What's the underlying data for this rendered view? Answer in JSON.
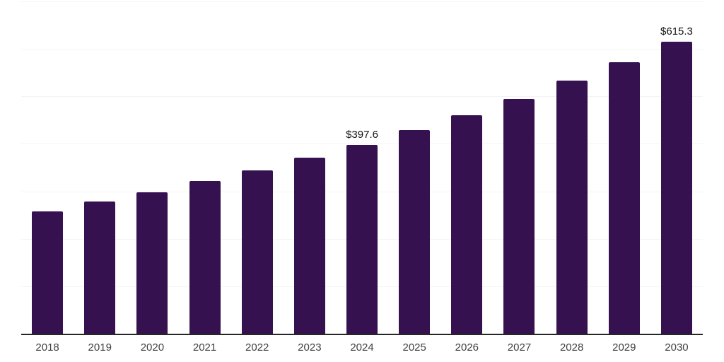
{
  "chart_data": {
    "type": "bar",
    "title": "",
    "xlabel": "",
    "ylabel": "",
    "categories": [
      "2018",
      "2019",
      "2020",
      "2021",
      "2022",
      "2023",
      "2024",
      "2025",
      "2026",
      "2027",
      "2028",
      "2029",
      "2030"
    ],
    "values": [
      258.0,
      278.7,
      298.0,
      321.8,
      344.1,
      370.9,
      397.6,
      428.8,
      460.0,
      494.2,
      532.9,
      571.5,
      615.3
    ],
    "data_labels": {
      "2024": "$397.6",
      "2030": "$615.3"
    },
    "ylim": [
      0,
      700
    ],
    "gridline_interval": 100,
    "grid": "horizontal-only",
    "legend": "none",
    "colors": {
      "bar": "#361150",
      "axis_line": "#262626",
      "gridline": "#f4f4f4",
      "tick_label": "#404040",
      "data_label": "#111111",
      "background": "#ffffff"
    }
  }
}
